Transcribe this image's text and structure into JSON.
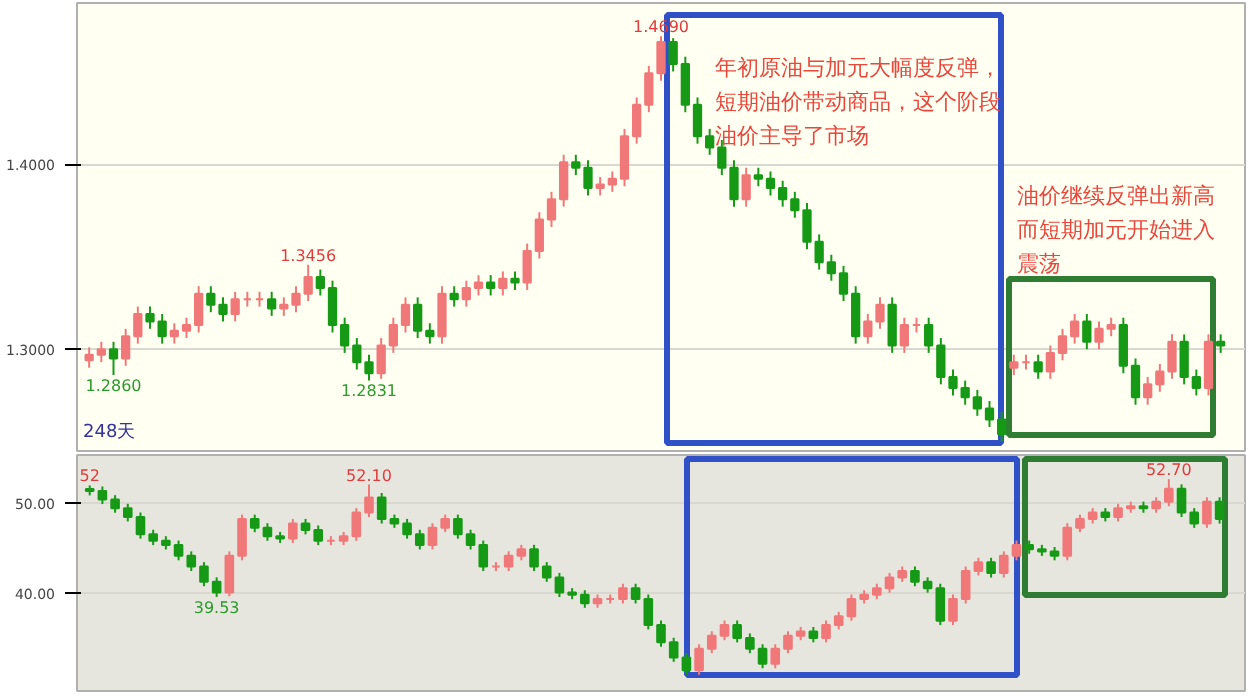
{
  "chart_data": [
    {
      "type": "candlestick",
      "tick_labels": "y",
      "grid": "y",
      "ylim": [
        1.245,
        1.487
      ],
      "yticks": [
        {
          "value": 1.3,
          "label": "1.3000"
        },
        {
          "value": 1.4,
          "label": "1.4000"
        }
      ],
      "categories": [
        null,
        null,
        null,
        null,
        null,
        null,
        null,
        null,
        null,
        null,
        null,
        null,
        null,
        null,
        null,
        null,
        null,
        null,
        null,
        null,
        null,
        null,
        null,
        null,
        null,
        null,
        null,
        null,
        null,
        null,
        null,
        null,
        null,
        null,
        null,
        null,
        null,
        null,
        null,
        null,
        null,
        null,
        null,
        null,
        null,
        null,
        null,
        null,
        null,
        null,
        null,
        null,
        null,
        null,
        null,
        null,
        null,
        null,
        null,
        null,
        null,
        null,
        null,
        null,
        null,
        null,
        null,
        null,
        null,
        null,
        null,
        null,
        null,
        null,
        null,
        null,
        null,
        null,
        null,
        null,
        null,
        null,
        null,
        null,
        null,
        null,
        null,
        null,
        null,
        null,
        null,
        null,
        null,
        null
      ],
      "ohlc": [
        [
          1.294,
          1.301,
          1.29,
          1.297
        ],
        [
          1.297,
          1.304,
          1.293,
          1.3
        ],
        [
          1.3,
          1.304,
          1.286,
          1.295
        ],
        [
          1.295,
          1.311,
          1.291,
          1.307
        ],
        [
          1.307,
          1.323,
          1.303,
          1.319
        ],
        [
          1.319,
          1.323,
          1.311,
          1.315
        ],
        [
          1.315,
          1.319,
          1.303,
          1.307
        ],
        [
          1.307,
          1.314,
          1.303,
          1.31
        ],
        [
          1.31,
          1.317,
          1.306,
          1.313
        ],
        [
          1.313,
          1.334,
          1.309,
          1.33
        ],
        [
          1.33,
          1.334,
          1.32,
          1.324
        ],
        [
          1.324,
          1.328,
          1.315,
          1.319
        ],
        [
          1.319,
          1.331,
          1.315,
          1.327
        ],
        [
          1.327,
          1.331,
          1.323,
          1.327
        ],
        [
          1.327,
          1.331,
          1.323,
          1.327
        ],
        [
          1.327,
          1.331,
          1.318,
          1.322
        ],
        [
          1.322,
          1.328,
          1.318,
          1.324
        ],
        [
          1.324,
          1.334,
          1.32,
          1.33
        ],
        [
          1.33,
          1.3456,
          1.326,
          1.339
        ],
        [
          1.339,
          1.343,
          1.329,
          1.333
        ],
        [
          1.333,
          1.337,
          1.309,
          1.313
        ],
        [
          1.313,
          1.317,
          1.298,
          1.302
        ],
        [
          1.302,
          1.306,
          1.289,
          1.293
        ],
        [
          1.293,
          1.297,
          1.2831,
          1.287
        ],
        [
          1.287,
          1.306,
          1.284,
          1.302
        ],
        [
          1.302,
          1.317,
          1.298,
          1.313
        ],
        [
          1.313,
          1.328,
          1.309,
          1.324
        ],
        [
          1.324,
          1.328,
          1.306,
          1.31
        ],
        [
          1.31,
          1.314,
          1.303,
          1.307
        ],
        [
          1.307,
          1.334,
          1.303,
          1.33
        ],
        [
          1.33,
          1.334,
          1.323,
          1.327
        ],
        [
          1.327,
          1.337,
          1.323,
          1.333
        ],
        [
          1.333,
          1.34,
          1.329,
          1.336
        ],
        [
          1.336,
          1.34,
          1.329,
          1.333
        ],
        [
          1.333,
          1.342,
          1.329,
          1.338
        ],
        [
          1.338,
          1.342,
          1.332,
          1.336
        ],
        [
          1.336,
          1.357,
          1.332,
          1.353
        ],
        [
          1.353,
          1.374,
          1.349,
          1.37
        ],
        [
          1.37,
          1.385,
          1.366,
          1.381
        ],
        [
          1.381,
          1.405,
          1.377,
          1.401
        ],
        [
          1.401,
          1.405,
          1.394,
          1.398
        ],
        [
          1.398,
          1.402,
          1.383,
          1.387
        ],
        [
          1.387,
          1.393,
          1.383,
          1.389
        ],
        [
          1.389,
          1.396,
          1.385,
          1.392
        ],
        [
          1.392,
          1.419,
          1.388,
          1.415
        ],
        [
          1.415,
          1.436,
          1.411,
          1.432
        ],
        [
          1.432,
          1.453,
          1.428,
          1.449
        ],
        [
          1.449,
          1.469,
          1.445,
          1.466
        ],
        [
          1.466,
          1.468,
          1.45,
          1.454
        ],
        [
          1.454,
          1.458,
          1.428,
          1.432
        ],
        [
          1.432,
          1.436,
          1.411,
          1.415
        ],
        [
          1.415,
          1.419,
          1.405,
          1.409
        ],
        [
          1.409,
          1.413,
          1.394,
          1.398
        ],
        [
          1.398,
          1.402,
          1.377,
          1.381
        ],
        [
          1.381,
          1.398,
          1.377,
          1.394
        ],
        [
          1.394,
          1.398,
          1.388,
          1.392
        ],
        [
          1.392,
          1.396,
          1.383,
          1.387
        ],
        [
          1.387,
          1.391,
          1.377,
          1.381
        ],
        [
          1.381,
          1.385,
          1.371,
          1.375
        ],
        [
          1.375,
          1.379,
          1.354,
          1.358
        ],
        [
          1.358,
          1.362,
          1.343,
          1.347
        ],
        [
          1.347,
          1.351,
          1.337,
          1.341
        ],
        [
          1.341,
          1.345,
          1.326,
          1.33
        ],
        [
          1.33,
          1.334,
          1.303,
          1.307
        ],
        [
          1.307,
          1.319,
          1.303,
          1.315
        ],
        [
          1.315,
          1.328,
          1.311,
          1.324
        ],
        [
          1.324,
          1.328,
          1.298,
          1.302
        ],
        [
          1.302,
          1.317,
          1.298,
          1.313
        ],
        [
          1.313,
          1.317,
          1.309,
          1.313
        ],
        [
          1.313,
          1.317,
          1.298,
          1.302
        ],
        [
          1.302,
          1.306,
          1.281,
          1.285
        ],
        [
          1.285,
          1.289,
          1.275,
          1.279
        ],
        [
          1.279,
          1.283,
          1.27,
          1.274
        ],
        [
          1.274,
          1.278,
          1.264,
          1.268
        ],
        [
          1.268,
          1.272,
          1.258,
          1.262
        ],
        [
          1.262,
          1.266,
          1.25,
          1.254
        ],
        [
          1.29,
          1.297,
          1.286,
          1.293
        ],
        [
          1.293,
          1.297,
          1.289,
          1.293
        ],
        [
          1.293,
          1.297,
          1.284,
          1.288
        ],
        [
          1.288,
          1.302,
          1.284,
          1.298
        ],
        [
          1.298,
          1.311,
          1.294,
          1.307
        ],
        [
          1.307,
          1.319,
          1.303,
          1.315
        ],
        [
          1.315,
          1.319,
          1.3,
          1.304
        ],
        [
          1.304,
          1.315,
          1.3,
          1.311
        ],
        [
          1.311,
          1.317,
          1.307,
          1.313
        ],
        [
          1.313,
          1.317,
          1.287,
          1.291
        ],
        [
          1.291,
          1.295,
          1.27,
          1.274
        ],
        [
          1.274,
          1.285,
          1.27,
          1.281
        ],
        [
          1.281,
          1.292,
          1.277,
          1.288
        ],
        [
          1.288,
          1.308,
          1.284,
          1.304
        ],
        [
          1.304,
          1.308,
          1.281,
          1.285
        ],
        [
          1.285,
          1.289,
          1.275,
          1.279
        ],
        [
          1.279,
          1.308,
          1.275,
          1.304
        ],
        [
          1.304,
          1.308,
          1.298,
          1.302
        ]
      ],
      "annotations": [
        "年初原油与加元大幅度反弹，短期油价带动商品，这个阶段油价主导了市场",
        "油价继续反弹出新高而短期加元开始进入震荡",
        "248天",
        {
          "text": "1.2860",
          "y": 1.286
        },
        {
          "text": "1.3456",
          "y": 1.3456
        },
        {
          "text": "1.2831",
          "y": 1.2831
        },
        {
          "text": "1.4690",
          "y": 1.469
        }
      ]
    },
    {
      "type": "candlestick",
      "tick_labels": "y",
      "grid": "y",
      "ylim": [
        29,
        55.4
      ],
      "yticks": [
        {
          "value": 40,
          "label": "40.00"
        },
        {
          "value": 50,
          "label": "50.00"
        }
      ],
      "categories": [
        null,
        null,
        null,
        null,
        null,
        null,
        null,
        null,
        null,
        null,
        null,
        null,
        null,
        null,
        null,
        null,
        null,
        null,
        null,
        null,
        null,
        null,
        null,
        null,
        null,
        null,
        null,
        null,
        null,
        null,
        null,
        null,
        null,
        null,
        null,
        null,
        null,
        null,
        null,
        null,
        null,
        null,
        null,
        null,
        null,
        null,
        null,
        null,
        null,
        null,
        null,
        null,
        null,
        null,
        null,
        null,
        null,
        null,
        null,
        null,
        null,
        null,
        null,
        null,
        null,
        null,
        null,
        null,
        null,
        null,
        null,
        null,
        null,
        null,
        null,
        null,
        null,
        null,
        null,
        null,
        null,
        null,
        null,
        null,
        null,
        null,
        null,
        null,
        null,
        null
      ],
      "ohlc": [
        [
          51.6,
          52.0,
          50.88,
          51.38
        ],
        [
          51.38,
          51.88,
          49.91,
          50.41
        ],
        [
          50.41,
          50.91,
          48.94,
          49.44
        ],
        [
          49.44,
          49.94,
          47.97,
          48.47
        ],
        [
          48.47,
          48.97,
          46.04,
          46.54
        ],
        [
          46.54,
          47.04,
          45.32,
          45.82
        ],
        [
          45.82,
          46.32,
          44.83,
          45.33
        ],
        [
          45.33,
          45.83,
          43.62,
          44.12
        ],
        [
          44.12,
          44.62,
          42.42,
          42.92
        ],
        [
          42.92,
          43.42,
          40.72,
          41.22
        ],
        [
          41.22,
          41.72,
          39.53,
          40.01
        ],
        [
          40.01,
          44.62,
          39.6,
          44.12
        ],
        [
          44.12,
          48.73,
          43.62,
          48.23
        ],
        [
          48.23,
          48.73,
          46.77,
          47.27
        ],
        [
          47.27,
          47.77,
          45.8,
          46.3
        ],
        [
          46.3,
          46.8,
          45.56,
          46.06
        ],
        [
          46.06,
          48.25,
          45.56,
          47.75
        ],
        [
          47.75,
          48.25,
          46.52,
          47.02
        ],
        [
          47.02,
          47.52,
          45.32,
          45.82
        ],
        [
          45.82,
          46.32,
          45.32,
          45.82
        ],
        [
          45.82,
          46.8,
          45.32,
          46.3
        ],
        [
          46.3,
          49.46,
          45.8,
          48.96
        ],
        [
          48.96,
          52.1,
          48.46,
          50.65
        ],
        [
          50.65,
          51.15,
          47.73,
          48.23
        ],
        [
          48.23,
          48.73,
          47.25,
          47.75
        ],
        [
          47.75,
          48.25,
          46.04,
          46.54
        ],
        [
          46.54,
          47.04,
          44.83,
          45.33
        ],
        [
          45.33,
          47.77,
          44.83,
          47.27
        ],
        [
          47.27,
          48.73,
          46.77,
          48.23
        ],
        [
          48.23,
          48.73,
          46.04,
          46.54
        ],
        [
          46.54,
          47.04,
          44.83,
          45.33
        ],
        [
          45.33,
          45.83,
          42.42,
          42.92
        ],
        [
          42.92,
          43.42,
          42.42,
          42.92
        ],
        [
          42.92,
          44.62,
          42.42,
          44.12
        ],
        [
          44.12,
          45.35,
          43.62,
          44.85
        ],
        [
          44.85,
          45.35,
          42.42,
          42.92
        ],
        [
          42.92,
          43.42,
          41.21,
          41.71
        ],
        [
          41.71,
          42.21,
          39.51,
          40.01
        ],
        [
          40.01,
          40.51,
          39.27,
          39.77
        ],
        [
          39.77,
          40.27,
          38.31,
          38.81
        ],
        [
          38.81,
          39.79,
          38.31,
          39.29
        ],
        [
          39.29,
          39.79,
          38.79,
          39.29
        ],
        [
          39.29,
          41.0,
          38.79,
          40.5
        ],
        [
          40.5,
          41.0,
          38.79,
          39.29
        ],
        [
          39.29,
          39.79,
          35.89,
          36.39
        ],
        [
          36.39,
          36.89,
          33.96,
          34.46
        ],
        [
          34.46,
          34.96,
          32.26,
          32.76
        ],
        [
          32.76,
          33.26,
          30.81,
          31.31
        ],
        [
          31.31,
          34.23,
          30.81,
          33.73
        ],
        [
          33.73,
          35.68,
          33.23,
          35.18
        ],
        [
          35.18,
          36.89,
          34.68,
          36.39
        ],
        [
          36.39,
          36.89,
          34.44,
          34.94
        ],
        [
          34.94,
          35.44,
          33.23,
          33.73
        ],
        [
          33.73,
          34.23,
          31.54,
          32.04
        ],
        [
          32.04,
          34.23,
          31.54,
          33.73
        ],
        [
          33.73,
          35.68,
          33.23,
          35.18
        ],
        [
          35.18,
          36.16,
          34.68,
          35.66
        ],
        [
          35.66,
          36.16,
          34.44,
          34.94
        ],
        [
          34.94,
          36.89,
          34.44,
          36.39
        ],
        [
          36.39,
          37.86,
          35.89,
          37.36
        ],
        [
          37.36,
          39.79,
          36.86,
          39.29
        ],
        [
          39.29,
          40.27,
          38.79,
          39.77
        ],
        [
          39.77,
          41.0,
          39.27,
          40.5
        ],
        [
          40.5,
          42.21,
          40.0,
          41.71
        ],
        [
          41.71,
          42.93,
          41.21,
          42.43
        ],
        [
          42.43,
          42.93,
          40.72,
          41.22
        ],
        [
          41.22,
          41.72,
          40.0,
          40.5
        ],
        [
          40.5,
          41.0,
          36.37,
          36.87
        ],
        [
          36.87,
          39.79,
          36.37,
          39.29
        ],
        [
          39.29,
          42.93,
          38.79,
          42.43
        ],
        [
          42.43,
          43.9,
          41.93,
          43.4
        ],
        [
          43.4,
          43.9,
          41.69,
          42.19
        ],
        [
          42.19,
          44.62,
          41.69,
          44.12
        ],
        [
          44.12,
          45.83,
          43.62,
          45.33
        ],
        [
          45.33,
          45.83,
          44.35,
          44.85
        ],
        [
          44.85,
          45.35,
          44.11,
          44.61
        ],
        [
          44.61,
          45.11,
          43.62,
          44.12
        ],
        [
          44.12,
          47.77,
          43.62,
          47.27
        ],
        [
          47.27,
          48.73,
          46.77,
          48.23
        ],
        [
          48.23,
          49.46,
          47.73,
          48.96
        ],
        [
          48.96,
          49.46,
          47.97,
          48.47
        ],
        [
          48.47,
          49.94,
          47.97,
          49.44
        ],
        [
          49.44,
          50.18,
          48.94,
          49.68
        ],
        [
          49.68,
          50.18,
          48.94,
          49.44
        ],
        [
          49.44,
          50.67,
          48.94,
          50.17
        ],
        [
          50.17,
          52.7,
          49.67,
          51.62
        ],
        [
          51.62,
          52.12,
          48.46,
          48.96
        ],
        [
          48.96,
          49.46,
          47.25,
          47.75
        ],
        [
          47.75,
          50.67,
          47.25,
          50.17
        ],
        [
          50.17,
          50.67,
          47.73,
          48.23
        ]
      ],
      "annotations": [
        {
          "text": "52",
          "y": 52.0
        },
        {
          "text": "39.53",
          "y": 39.53
        },
        {
          "text": "52.10",
          "y": 52.1
        },
        {
          "text": "52.70",
          "y": 52.7
        }
      ]
    }
  ]
}
